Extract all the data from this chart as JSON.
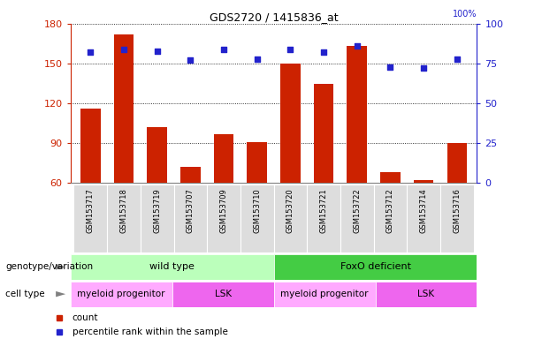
{
  "title": "GDS2720 / 1415836_at",
  "samples": [
    "GSM153717",
    "GSM153718",
    "GSM153719",
    "GSM153707",
    "GSM153709",
    "GSM153710",
    "GSM153720",
    "GSM153721",
    "GSM153722",
    "GSM153712",
    "GSM153714",
    "GSM153716"
  ],
  "counts": [
    116,
    172,
    102,
    72,
    97,
    91,
    150,
    135,
    163,
    68,
    62,
    90
  ],
  "percentile_ranks": [
    82,
    84,
    83,
    77,
    84,
    78,
    84,
    82,
    86,
    73,
    72,
    78
  ],
  "ylim_left": [
    60,
    180
  ],
  "ylim_right": [
    0,
    100
  ],
  "yticks_left": [
    60,
    90,
    120,
    150,
    180
  ],
  "yticks_right": [
    0,
    25,
    50,
    75,
    100
  ],
  "bar_color": "#cc2200",
  "dot_color": "#2222cc",
  "grid_color": "#000000",
  "genotype_groups": [
    {
      "label": "wild type",
      "start": 0,
      "end": 6,
      "color": "#bbffbb"
    },
    {
      "label": "FoxO deficient",
      "start": 6,
      "end": 12,
      "color": "#44cc44"
    }
  ],
  "celltype_groups": [
    {
      "label": "myeloid progenitor",
      "start": 0,
      "end": 3,
      "color": "#ffaaff"
    },
    {
      "label": "LSK",
      "start": 3,
      "end": 6,
      "color": "#ee66ee"
    },
    {
      "label": "myeloid progenitor",
      "start": 6,
      "end": 9,
      "color": "#ffaaff"
    },
    {
      "label": "LSK",
      "start": 9,
      "end": 12,
      "color": "#ee66ee"
    }
  ],
  "legend_count_color": "#cc2200",
  "legend_pct_color": "#2222cc",
  "label_genotype": "genotype/variation",
  "label_celltype": "cell type",
  "legend_count_label": "count",
  "legend_pct_label": "percentile rank within the sample",
  "tick_label_bg": "#dddddd",
  "right_axis_label": "100%"
}
